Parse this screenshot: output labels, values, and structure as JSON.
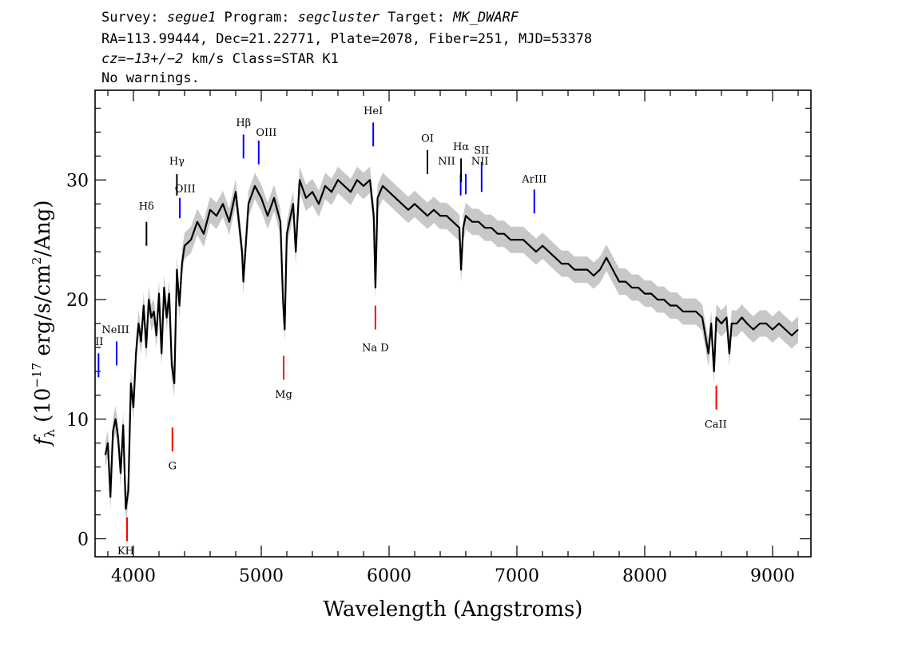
{
  "header": {
    "line1": [
      {
        "text": "Survey: ",
        "italic": false
      },
      {
        "text": "segue1",
        "italic": true
      },
      {
        "text": " Program: ",
        "italic": false
      },
      {
        "text": "segcluster",
        "italic": true
      },
      {
        "text": " Target: ",
        "italic": false
      },
      {
        "text": "MK_DWARF",
        "italic": true
      }
    ],
    "line2": "RA=113.99444, Dec=21.22771, Plate=2078, Fiber=251, MJD=53378",
    "line3": [
      {
        "text": "cz=−13+/−2",
        "italic": true
      },
      {
        "text": " km/s Class=STAR K1",
        "italic": false
      }
    ],
    "line4": "No warnings."
  },
  "chart_data": {
    "type": "line",
    "xlabel": "Wavelength (Angstroms)",
    "ylabel": "f_λ (10^-17 erg/s/cm²/Ang)",
    "xlim": [
      3700,
      9300
    ],
    "ylim": [
      -1.5,
      37.5
    ],
    "xticks": [
      4000,
      5000,
      6000,
      7000,
      8000,
      9000
    ],
    "yticks": [
      0,
      10,
      20,
      30
    ],
    "grid": false,
    "series": [
      {
        "color": "#000000",
        "x": [
          3780,
          3800,
          3820,
          3840,
          3860,
          3880,
          3900,
          3920,
          3940,
          3960,
          3980,
          4000,
          4020,
          4040,
          4060,
          4080,
          4100,
          4120,
          4140,
          4160,
          4180,
          4200,
          4220,
          4240,
          4260,
          4280,
          4300,
          4320,
          4340,
          4360,
          4380,
          4400,
          4450,
          4500,
          4550,
          4600,
          4650,
          4700,
          4750,
          4800,
          4850,
          4860,
          4900,
          4950,
          5000,
          5050,
          5100,
          5150,
          5170,
          5183,
          5200,
          5250,
          5270,
          5300,
          5350,
          5400,
          5450,
          5500,
          5550,
          5600,
          5650,
          5700,
          5750,
          5800,
          5850,
          5880,
          5893,
          5910,
          5950,
          6000,
          6050,
          6100,
          6150,
          6200,
          6250,
          6300,
          6350,
          6400,
          6450,
          6500,
          6550,
          6563,
          6580,
          6600,
          6650,
          6700,
          6750,
          6800,
          6850,
          6900,
          6950,
          7000,
          7050,
          7100,
          7150,
          7200,
          7250,
          7300,
          7350,
          7400,
          7450,
          7500,
          7550,
          7600,
          7650,
          7700,
          7750,
          7800,
          7850,
          7900,
          7950,
          8000,
          8050,
          8100,
          8150,
          8200,
          8250,
          8300,
          8350,
          8400,
          8450,
          8498,
          8520,
          8542,
          8560,
          8600,
          8640,
          8662,
          8680,
          8720,
          8760,
          8800,
          8850,
          8900,
          8950,
          9000,
          9050,
          9100,
          9150,
          9200
        ],
        "y": [
          7.0,
          8.0,
          3.5,
          9.0,
          10.0,
          8.5,
          5.5,
          9.5,
          2.5,
          4.0,
          13.0,
          11.0,
          15.5,
          18.0,
          16.5,
          19.5,
          16.0,
          20.0,
          18.5,
          19.0,
          17.0,
          20.5,
          15.5,
          21.0,
          18.5,
          20.5,
          14.5,
          13.0,
          22.5,
          19.5,
          23.0,
          24.5,
          25.0,
          26.5,
          25.5,
          27.5,
          27.0,
          28.0,
          26.5,
          29.0,
          24.0,
          21.5,
          28.0,
          29.5,
          28.5,
          27.0,
          28.5,
          26.5,
          20.0,
          17.5,
          25.5,
          28.0,
          24.0,
          30.0,
          28.5,
          29.0,
          28.0,
          29.5,
          29.0,
          30.0,
          29.5,
          29.0,
          30.0,
          29.5,
          30.0,
          27.0,
          21.0,
          28.5,
          29.5,
          29.0,
          28.5,
          28.0,
          27.5,
          28.0,
          27.5,
          27.0,
          27.5,
          27.0,
          27.0,
          26.5,
          26.0,
          22.5,
          26.0,
          27.0,
          26.5,
          26.5,
          26.0,
          26.0,
          25.5,
          25.5,
          25.0,
          25.0,
          25.0,
          24.5,
          24.0,
          24.5,
          24.0,
          23.5,
          23.0,
          23.0,
          22.5,
          22.5,
          22.5,
          22.0,
          22.5,
          23.5,
          22.5,
          21.5,
          21.5,
          21.0,
          21.0,
          20.5,
          20.5,
          20.0,
          20.0,
          19.5,
          19.5,
          19.0,
          19.0,
          19.0,
          18.5,
          15.5,
          18.0,
          14.0,
          18.5,
          18.0,
          18.5,
          15.5,
          18.0,
          18.0,
          18.5,
          18.0,
          17.5,
          18.0,
          18.0,
          17.5,
          18.0,
          17.5,
          17.0,
          17.5
        ]
      }
    ],
    "lines": [
      {
        "label": "Na D",
        "wl": 5893,
        "y1": 19.5,
        "y2": 17.5,
        "color": "#ff0000",
        "lx": 5893,
        "ly": 15.7
      },
      {
        "label": "Mg",
        "wl": 5175,
        "y1": 15.3,
        "y2": 13.3,
        "color": "#ff0000",
        "lx": 5175,
        "ly": 11.8
      },
      {
        "label": "G",
        "wl": 4305,
        "y1": 9.3,
        "y2": 7.3,
        "color": "#ff0000",
        "lx": 4305,
        "ly": 5.8
      },
      {
        "label": "KH",
        "wl": 3950,
        "y1": 1.8,
        "y2": -0.2,
        "color": "#ff0000",
        "lx": 3940,
        "ly": -1.3
      },
      {
        "label": "CaII",
        "wl": 8560,
        "y1": 12.8,
        "y2": 10.8,
        "color": "#ff0000",
        "lx": 8555,
        "ly": 9.3
      },
      {
        "label": "Hδ",
        "wl": 4102,
        "y1": 26.5,
        "y2": 24.5,
        "color": "#000000",
        "lx": 4102,
        "ly": 27.5
      },
      {
        "label": "Hγ",
        "wl": 4340,
        "y1": 30.5,
        "y2": 28.7,
        "color": "#000000",
        "lx": 4340,
        "ly": 31.3
      },
      {
        "label": "OIII",
        "wl": 4363,
        "y1": 28.5,
        "y2": 26.8,
        "color": "#0000ff",
        "lx": 4405,
        "ly": 29.0
      },
      {
        "label": "Hβ",
        "wl": 4861,
        "y1": 33.8,
        "y2": 31.8,
        "color": "#0000ff",
        "lx": 4861,
        "ly": 34.5
      },
      {
        "label": "OIII",
        "wl": 4980,
        "y1": 33.3,
        "y2": 31.3,
        "color": "#0000ff",
        "lx": 5040,
        "ly": 33.7
      },
      {
        "label": "HeI",
        "wl": 5876,
        "y1": 34.8,
        "y2": 32.8,
        "color": "#0000ff",
        "lx": 5876,
        "ly": 35.5
      },
      {
        "label": "OI",
        "wl": 6300,
        "y1": 32.5,
        "y2": 30.5,
        "color": "#000000",
        "lx": 6300,
        "ly": 33.2
      },
      {
        "label": "NII",
        "wl": 6560,
        "y1": 30.5,
        "y2": 28.7,
        "color": "#0000ff",
        "lx": 6450,
        "ly": 31.3
      },
      {
        "label": "Hα",
        "wl": 6563,
        "y1": 31.8,
        "y2": 29.8,
        "color": "#000000",
        "lx": 6563,
        "ly": 32.5
      },
      {
        "label": "SII",
        "wl": 6724,
        "y1": 31.5,
        "y2": 29.0,
        "color": "#0000ff",
        "lx": 6724,
        "ly": 32.2
      },
      {
        "label": "NII",
        "wl": 6600,
        "y1": 30.5,
        "y2": 28.8,
        "color": "#0000ff",
        "lx": 6710,
        "ly": 31.3
      },
      {
        "label": "ArIII",
        "wl": 7136,
        "y1": 29.2,
        "y2": 27.2,
        "color": "#0000ff",
        "lx": 7136,
        "ly": 29.8
      },
      {
        "label": "NeIII",
        "wl": 3869,
        "y1": 16.5,
        "y2": 14.5,
        "color": "#0000ff",
        "lx": 3860,
        "ly": 17.2
      },
      {
        "label": "II",
        "wl": 3727,
        "y1": 15.5,
        "y2": 13.5,
        "color": "#0000ff",
        "lx": 3733,
        "ly": 16.2
      }
    ]
  }
}
